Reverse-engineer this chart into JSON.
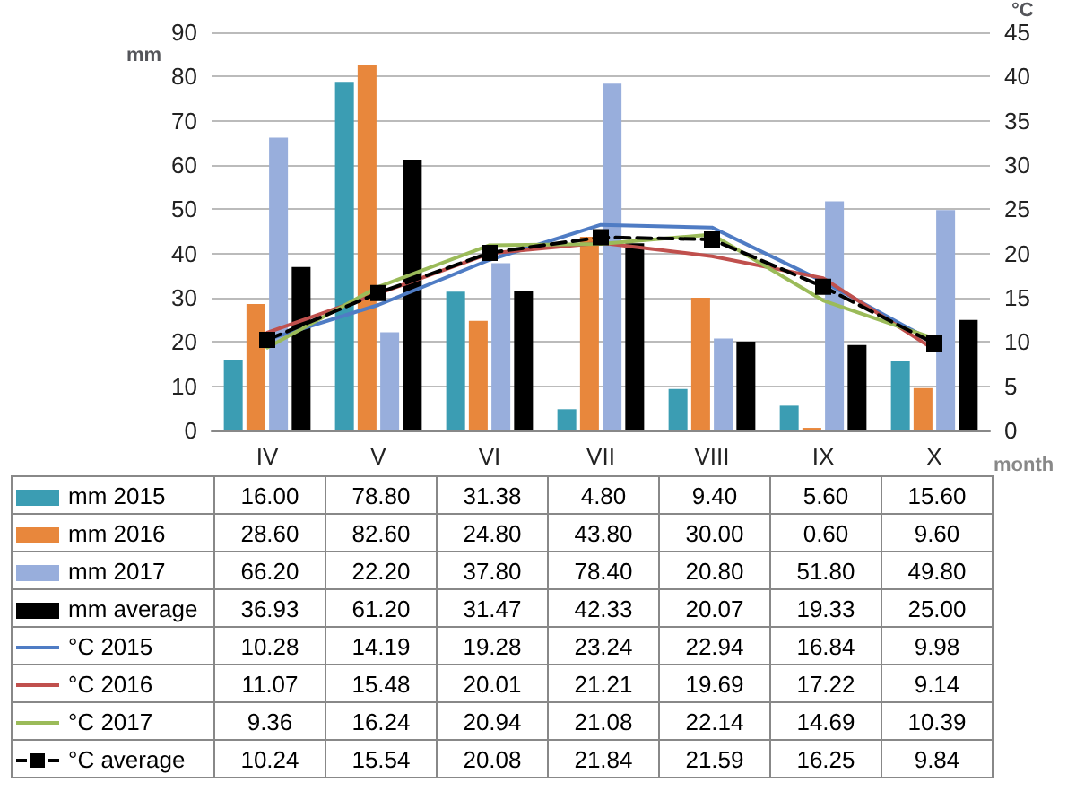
{
  "chart_data": {
    "type": "bar",
    "ylabel": "mm",
    "y2label": "°C",
    "xlabel": "month",
    "categories": [
      "IV",
      "V",
      "VI",
      "VII",
      "VIII",
      "IX",
      "X"
    ],
    "ylim": [
      0,
      90
    ],
    "yticks": [
      0,
      10,
      20,
      30,
      40,
      50,
      60,
      70,
      80,
      90
    ],
    "y2lim": [
      0,
      45
    ],
    "y2ticks": [
      0,
      5,
      10,
      15,
      20,
      25,
      30,
      35,
      40,
      45
    ],
    "grid": "y",
    "legend": "bottom",
    "series": [
      {
        "name": "mm 2015",
        "color": "#3b9db3",
        "values": [
          16.0,
          78.8,
          31.38,
          4.8,
          9.4,
          5.6,
          15.6
        ],
        "value_labels": [
          "16.00",
          "78.80",
          "31.38",
          "4.80",
          "9.40",
          "5.60",
          "15.60"
        ]
      },
      {
        "name": "mm 2016",
        "color": "#e8873c",
        "values": [
          28.6,
          82.6,
          24.8,
          43.8,
          30.0,
          0.6,
          9.6
        ],
        "value_labels": [
          "28.60",
          "82.60",
          "24.80",
          "43.80",
          "30.00",
          "0.60",
          "9.60"
        ]
      },
      {
        "name": "mm 2017",
        "color": "#98aedc",
        "values": [
          66.2,
          22.2,
          37.8,
          78.4,
          20.8,
          51.8,
          49.8
        ],
        "value_labels": [
          "66.20",
          "22.20",
          "37.80",
          "78.40",
          "20.80",
          "51.80",
          "49.80"
        ]
      },
      {
        "name": "mm average",
        "color": "#000000",
        "values": [
          36.93,
          61.2,
          31.47,
          42.33,
          20.07,
          19.33,
          25.0
        ],
        "value_labels": [
          "36.93",
          "61.20",
          "31.47",
          "42.33",
          "20.07",
          "19.33",
          "25.00"
        ]
      },
      {
        "name": "°C 2015",
        "type": "line",
        "axis": "y2",
        "color": "#4f7cc4",
        "marker": "none",
        "line_style": "solid",
        "values": [
          10.28,
          14.19,
          19.28,
          23.24,
          22.94,
          16.84,
          9.98
        ],
        "value_labels": [
          "10.28",
          "14.19",
          "19.28",
          "23.24",
          "22.94",
          "16.84",
          "9.98"
        ]
      },
      {
        "name": "°C 2016",
        "type": "line",
        "axis": "y2",
        "color": "#c0504d",
        "marker": "none",
        "line_style": "solid",
        "values": [
          11.07,
          15.48,
          20.01,
          21.21,
          19.69,
          17.22,
          9.14
        ],
        "value_labels": [
          "11.07",
          "15.48",
          "20.01",
          "21.21",
          "19.69",
          "17.22",
          "9.14"
        ]
      },
      {
        "name": "°C 2017",
        "type": "line",
        "axis": "y2",
        "color": "#9bbb59",
        "marker": "none",
        "line_style": "solid",
        "values": [
          9.36,
          16.24,
          20.94,
          21.08,
          22.14,
          14.69,
          10.39
        ],
        "value_labels": [
          "9.36",
          "16.24",
          "20.94",
          "21.08",
          "22.14",
          "14.69",
          "10.39"
        ]
      },
      {
        "name": "°C average",
        "type": "line",
        "axis": "y2",
        "color": "#000000",
        "marker": "square",
        "line_style": "dashed",
        "values": [
          10.24,
          15.54,
          20.08,
          21.84,
          21.59,
          16.25,
          9.84
        ],
        "value_labels": [
          "10.24",
          "15.54",
          "20.08",
          "21.84",
          "21.59",
          "16.25",
          "9.84"
        ]
      }
    ]
  }
}
